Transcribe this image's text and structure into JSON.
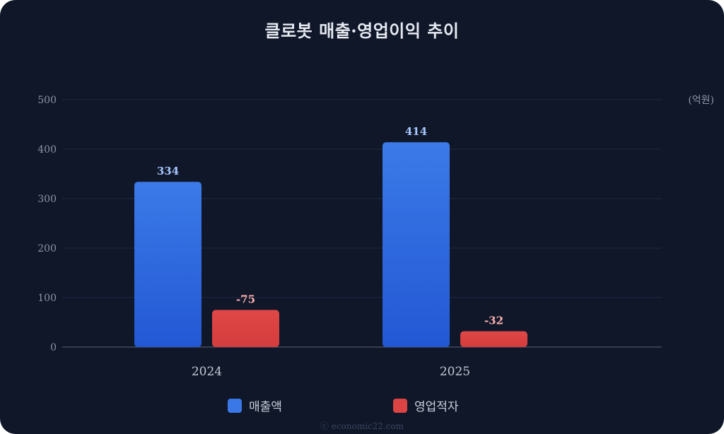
{
  "chart_data": {
    "type": "bar",
    "title": "클로봇 매출·영업이익 추이",
    "unit_label": "(억원)",
    "categories": [
      "2024",
      "2025"
    ],
    "series": [
      {
        "name": "매출액",
        "values": [
          334,
          414
        ],
        "color": "#3b78e7",
        "label_color": "#a9c8ff"
      },
      {
        "name": "영업적자",
        "values": [
          75,
          32
        ],
        "labels": [
          "-75",
          "-32"
        ],
        "color": "#dc4444",
        "label_color": "#ffb0b0"
      }
    ],
    "y_ticks": [
      0,
      100,
      200,
      300,
      400,
      500
    ],
    "ylim": [
      0,
      500
    ],
    "grid": true,
    "legend_position": "bottom"
  },
  "footer": "ⓒ economic22.com"
}
